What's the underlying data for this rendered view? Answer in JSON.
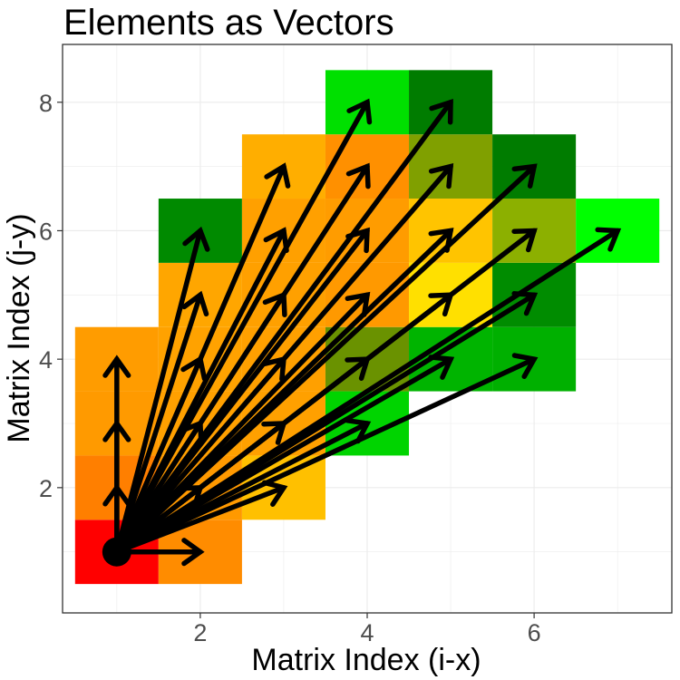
{
  "chart_data": {
    "type": "heatmap",
    "title": "Elements as Vectors",
    "xlabel": "Matrix Index (i-x)",
    "ylabel": "Matrix Index (j-y)",
    "xlim": [
      0.35,
      7.65
    ],
    "ylim": [
      0.05,
      8.9
    ],
    "x_ticks": [
      2,
      4,
      6
    ],
    "y_ticks": [
      2,
      4,
      6,
      8
    ],
    "grid": true,
    "origin": [
      1,
      1
    ],
    "cells": [
      {
        "x": 1,
        "y": 1,
        "fill": "#ff0000"
      },
      {
        "x": 2,
        "y": 1,
        "fill": "#ff8c00"
      },
      {
        "x": 1,
        "y": 2,
        "fill": "#ff7f00"
      },
      {
        "x": 2,
        "y": 2,
        "fill": "#ff9900"
      },
      {
        "x": 3,
        "y": 2,
        "fill": "#ffc000"
      },
      {
        "x": 1,
        "y": 3,
        "fill": "#ff9a00"
      },
      {
        "x": 2,
        "y": 3,
        "fill": "#ffa000"
      },
      {
        "x": 3,
        "y": 3,
        "fill": "#ffa000"
      },
      {
        "x": 4,
        "y": 3,
        "fill": "#00d400"
      },
      {
        "x": 1,
        "y": 4,
        "fill": "#ff9c00"
      },
      {
        "x": 2,
        "y": 4,
        "fill": "#ffa200"
      },
      {
        "x": 3,
        "y": 4,
        "fill": "#ffa000"
      },
      {
        "x": 4,
        "y": 4,
        "fill": "#6a9200"
      },
      {
        "x": 5,
        "y": 4,
        "fill": "#00b400"
      },
      {
        "x": 6,
        "y": 4,
        "fill": "#00b000"
      },
      {
        "x": 2,
        "y": 5,
        "fill": "#ffa600"
      },
      {
        "x": 3,
        "y": 5,
        "fill": "#ffa000"
      },
      {
        "x": 4,
        "y": 5,
        "fill": "#ff9900"
      },
      {
        "x": 5,
        "y": 5,
        "fill": "#ffe000"
      },
      {
        "x": 6,
        "y": 5,
        "fill": "#008c00"
      },
      {
        "x": 2,
        "y": 6,
        "fill": "#008a00"
      },
      {
        "x": 3,
        "y": 6,
        "fill": "#ffa000"
      },
      {
        "x": 4,
        "y": 6,
        "fill": "#ff9c00"
      },
      {
        "x": 5,
        "y": 6,
        "fill": "#ffc400"
      },
      {
        "x": 6,
        "y": 6,
        "fill": "#8cb000"
      },
      {
        "x": 7,
        "y": 6,
        "fill": "#00ff00"
      },
      {
        "x": 3,
        "y": 7,
        "fill": "#ffae00"
      },
      {
        "x": 4,
        "y": 7,
        "fill": "#ff9000"
      },
      {
        "x": 5,
        "y": 7,
        "fill": "#80a000"
      },
      {
        "x": 6,
        "y": 7,
        "fill": "#007c00"
      },
      {
        "x": 4,
        "y": 8,
        "fill": "#00e000"
      },
      {
        "x": 5,
        "y": 8,
        "fill": "#007c00"
      }
    ],
    "vector_color": "#000000"
  }
}
